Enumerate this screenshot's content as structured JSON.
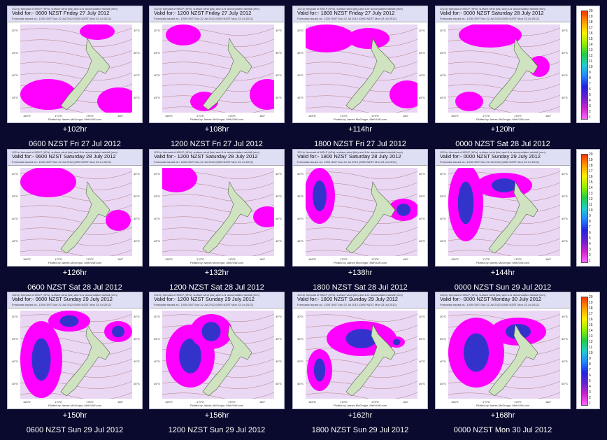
{
  "header_small": "102-hr forecast of MSLP (hPa), surface wind (kts) and 6-hr accumulated rainfall (mm)",
  "issued_text": "Forecasts issued at:- 1200 GMT Sun 22 Jul 2012 (0000 NZST Mon 23 Jul 2012)",
  "credit_text": "Plotted by James McGregor, MetVUW.com",
  "lon_ticks": [
    "165°E",
    "170°E",
    "175°E",
    "180°"
  ],
  "lat_ticks": [
    "30°S",
    "35°S",
    "40°S",
    "45°S"
  ],
  "legend_values": [
    "20",
    "19",
    "18",
    "17",
    "16",
    "15",
    "14",
    "13",
    "12",
    "11",
    "10",
    "9",
    "8",
    "7",
    "6",
    "5",
    "4",
    "3",
    "2",
    "1"
  ],
  "frames": [
    {
      "valid": "Valid for:- 0600 NZST Friday 27 July 2012",
      "offset": "+102hr",
      "caption": "0600 NZST Fri 27 Jul 2012"
    },
    {
      "valid": "Valid for:- 1200 NZST Friday 27 July 2012",
      "offset": "+108hr",
      "caption": "1200 NZST Fri 27 Jul 2012"
    },
    {
      "valid": "Valid for:- 1800 NZST Friday 27 July 2012",
      "offset": "+114hr",
      "caption": "1800 NZST Fri 27 Jul 2012"
    },
    {
      "valid": "Valid for:- 0000 NZST Saturday 28 July 2012",
      "offset": "+120hr",
      "caption": "0000 NZST Sat 28 Jul 2012"
    },
    {
      "valid": "Valid for:- 0600 NZST Saturday 28 July 2012",
      "offset": "+126hr",
      "caption": "0600 NZST Sat 28 Jul 2012"
    },
    {
      "valid": "Valid for:- 1200 NZST Saturday 28 July 2012",
      "offset": "+132hr",
      "caption": "1200 NZST Sat 28 Jul 2012"
    },
    {
      "valid": "Valid for:- 1800 NZST Saturday 28 July 2012",
      "offset": "+138hr",
      "caption": "1800 NZST Sat 28 Jul 2012"
    },
    {
      "valid": "Valid for:- 0000 NZST Sunday 29 July 2012",
      "offset": "+144hr",
      "caption": "0000 NZST Sun 29 Jul 2012"
    },
    {
      "valid": "Valid for:- 0600 NZST Sunday 29 July 2012",
      "offset": "+150hr",
      "caption": "0600 NZST Sun 29 Jul 2012"
    },
    {
      "valid": "Valid for:- 1200 NZST Sunday 29 July 2012",
      "offset": "+156hr",
      "caption": "1200 NZST Sun 29 Jul 2012"
    },
    {
      "valid": "Valid for:- 1800 NZST Sunday 29 July 2012",
      "offset": "+162hr",
      "caption": "1800 NZST Sun 29 Jul 2012"
    },
    {
      "valid": "Valid for:- 0000 NZST Monday 30 July 2012",
      "offset": "+168hr",
      "caption": "0000 NZST Mon 30 Jul 2012"
    }
  ],
  "colors": {
    "background": "#0a0a2e",
    "rain": "#ff00ff",
    "rain_heavy": "#3333cc",
    "land": "#cfe3c0"
  }
}
